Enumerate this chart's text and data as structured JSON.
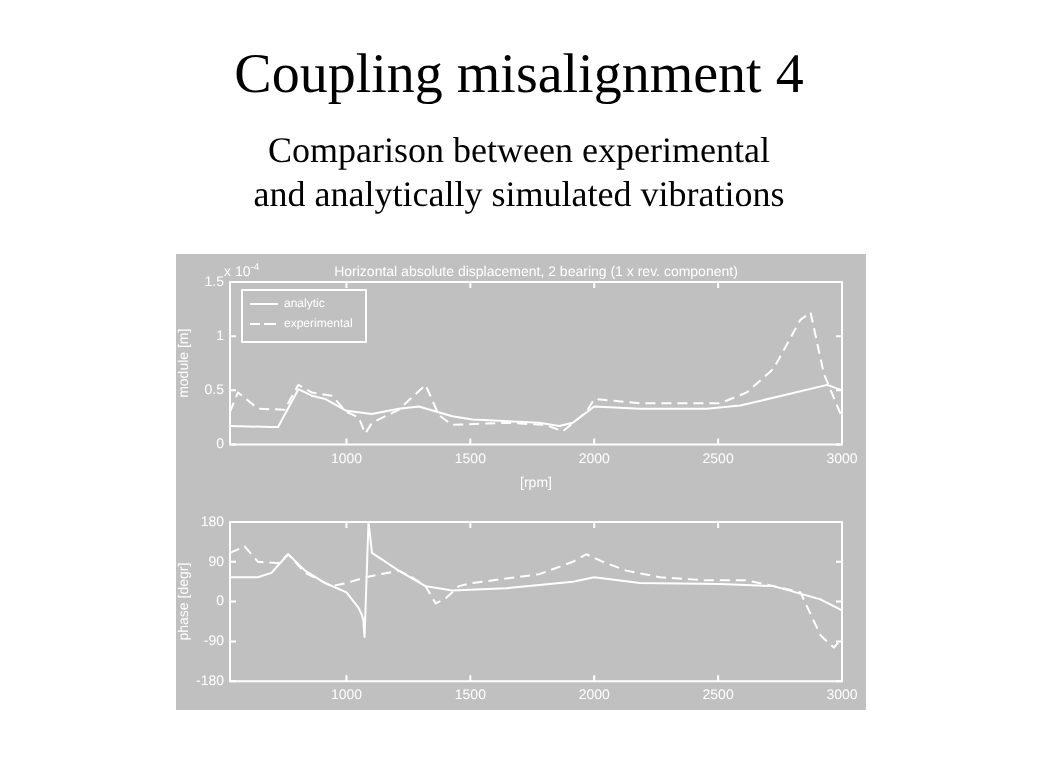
{
  "chart_data": [
    {
      "type": "line",
      "title": "Coupling misalignment 4",
      "subtitle": "Comparison between experimental\nand analytically simulated vibrations",
      "annotations": [
        "Horizontal absolute displacement, 2 bearing (1 x rev. component)",
        "x 10$^{-4}$"
      ],
      "xlabel": "[rpm]",
      "ylabel": "module [m]",
      "xlim": [
        530,
        3000
      ],
      "xticks": [
        1000,
        1500,
        2000,
        2500,
        3000
      ],
      "ylim": [
        0,
        1.5
      ],
      "yticks": [
        0,
        0.5,
        1,
        1.5
      ],
      "grid": false,
      "legend": "top left",
      "marker": "none",
      "series": [
        {
          "name": "analytic",
          "color": "#ffffff",
          "line_style": "solid",
          "x": [
            530,
            697,
            724,
            806,
            860,
            914,
            1000,
            1103,
            1211,
            1292,
            1427,
            1508,
            1778,
            1859,
            1914,
            2000,
            2184,
            2454,
            2589,
            2778,
            2940,
            3000
          ],
          "values": [
            0.17,
            0.16,
            0.16,
            0.51,
            0.45,
            0.42,
            0.31,
            0.28,
            0.33,
            0.35,
            0.26,
            0.23,
            0.2,
            0.17,
            0.2,
            0.35,
            0.33,
            0.33,
            0.36,
            0.46,
            0.55,
            0.5
          ]
        },
        {
          "name": "experimental",
          "color": "#ffffff",
          "line_style": "dashed",
          "x": [
            530,
            562,
            643,
            750,
            806,
            860,
            941,
            1000,
            1049,
            1076,
            1103,
            1211,
            1319,
            1373,
            1427,
            1643,
            1805,
            1873,
            1968,
            2000,
            2184,
            2508,
            2616,
            2724,
            2832,
            2873,
            2927,
            3000
          ],
          "values": [
            0.3,
            0.48,
            0.33,
            0.32,
            0.55,
            0.48,
            0.45,
            0.3,
            0.25,
            0.1,
            0.2,
            0.32,
            0.55,
            0.27,
            0.18,
            0.2,
            0.18,
            0.12,
            0.3,
            0.42,
            0.38,
            0.38,
            0.48,
            0.7,
            1.15,
            1.22,
            0.65,
            0.25
          ]
        }
      ]
    },
    {
      "type": "line",
      "ylabel": "phase [degr]",
      "xlim": [
        530,
        3000
      ],
      "xticks": [
        1000,
        1500,
        2000,
        2500,
        3000
      ],
      "ylim": [
        -180,
        180
      ],
      "yticks": [
        -180,
        -90,
        0,
        90,
        180
      ],
      "grid": false,
      "marker": "none",
      "series": [
        {
          "color": "#ffffff",
          "line_style": "solid",
          "x": [
            530,
            643,
            697,
            765,
            833,
            914,
            1000,
            1049,
            1062,
            1068,
            1073,
            1089,
            1103,
            1211,
            1319,
            1427,
            1643,
            1914,
            2000,
            2184,
            2508,
            2724,
            2913,
            3000
          ],
          "values": [
            55,
            55,
            65,
            107,
            70,
            42,
            21,
            -14,
            -30,
            -42,
            -80,
            180,
            110,
            70,
            35,
            25,
            30,
            45,
            55,
            42,
            40,
            35,
            5,
            -20
          ]
        },
        {
          "color": "#ffffff",
          "line_style": "dashed",
          "x": [
            530,
            589,
            643,
            724,
            765,
            833,
            941,
            1000,
            1076,
            1211,
            1265,
            1319,
            1360,
            1400,
            1454,
            1508,
            1778,
            1914,
            1968,
            2035,
            2130,
            2265,
            2454,
            2616,
            2724,
            2832,
            2913,
            2967,
            3000
          ],
          "values": [
            110,
            125,
            90,
            87,
            107,
            65,
            35,
            42,
            55,
            70,
            55,
            35,
            -4,
            7,
            35,
            42,
            62,
            90,
            107,
            90,
            70,
            55,
            48,
            48,
            35,
            21,
            -76,
            -104,
            -83
          ]
        }
      ]
    }
  ]
}
